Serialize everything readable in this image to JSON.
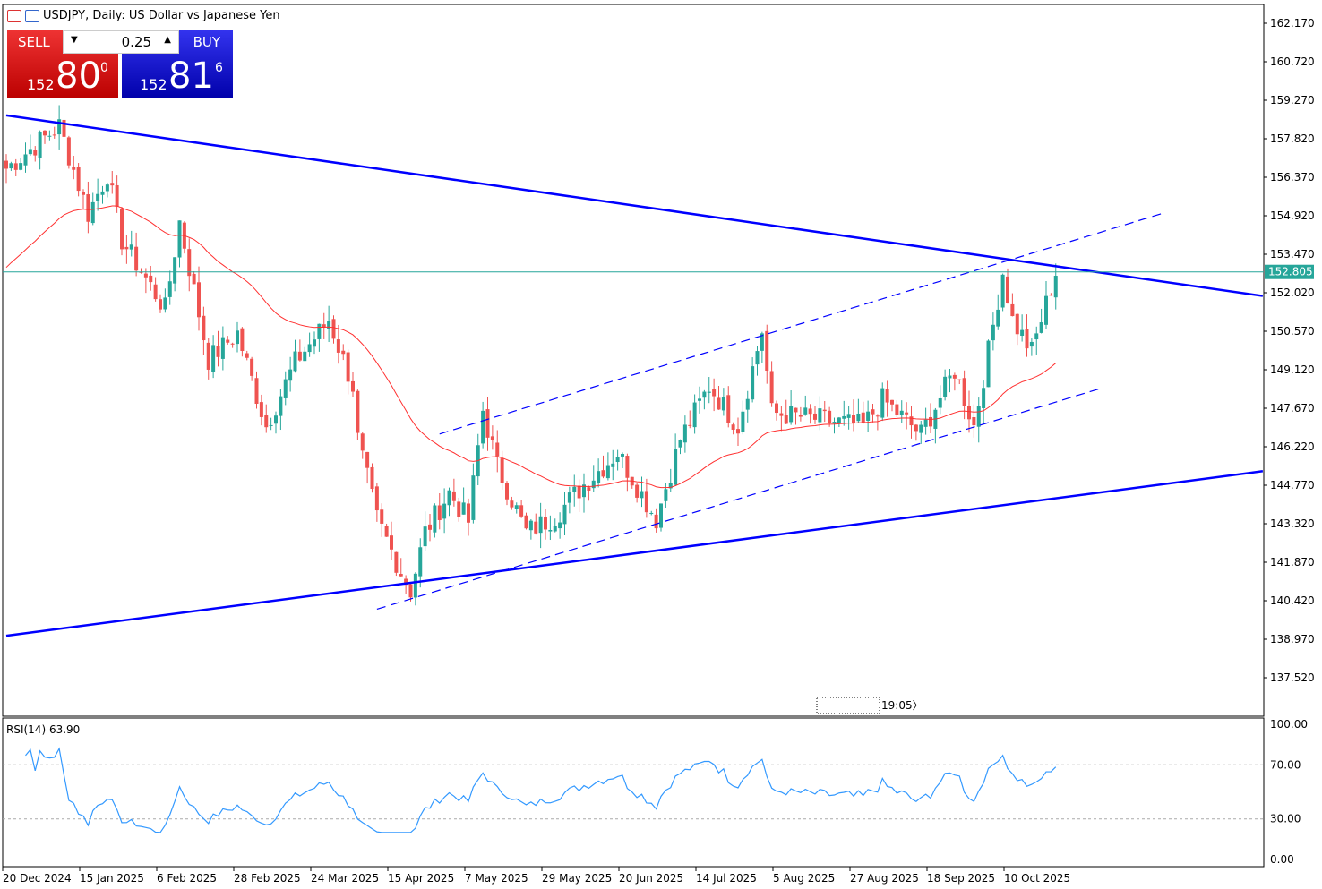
{
  "header": {
    "title": "USDJPY, Daily:  US Dollar vs Japanese Yen"
  },
  "trade_panel": {
    "sell_label": "SELL",
    "buy_label": "BUY",
    "volume": "0.25",
    "sell_prefix": "152",
    "sell_big": "80",
    "sell_sup": "0",
    "buy_prefix": "152",
    "buy_big": "81",
    "buy_sup": "6"
  },
  "time_marker": "19:05",
  "chart_data": [
    {
      "type": "candlestick",
      "title": "USDJPY, Daily",
      "bars": 219,
      "close_keypoints": [
        [
          0,
          156.7
        ],
        [
          11,
          158.3
        ],
        [
          17,
          155.0
        ],
        [
          21,
          156.5
        ],
        [
          24,
          154.0
        ],
        [
          33,
          151.4
        ],
        [
          36,
          154.7
        ],
        [
          42,
          149.5
        ],
        [
          48,
          150.5
        ],
        [
          54,
          147.0
        ],
        [
          60,
          149.4
        ],
        [
          67,
          151.0
        ],
        [
          72,
          148.5
        ],
        [
          73,
          146.5
        ],
        [
          77,
          143.5
        ],
        [
          82,
          141.5
        ],
        [
          84,
          140.8
        ],
        [
          87,
          143.0
        ],
        [
          92,
          144.5
        ],
        [
          96,
          143.4
        ],
        [
          99,
          147.6
        ],
        [
          102,
          145.5
        ],
        [
          108,
          143.0
        ],
        [
          114,
          143.6
        ],
        [
          120,
          144.8
        ],
        [
          127,
          146.0
        ],
        [
          135,
          143.5
        ],
        [
          140,
          146.5
        ],
        [
          146,
          148.5
        ],
        [
          152,
          147.0
        ],
        [
          157,
          150.6
        ],
        [
          159,
          147.5
        ],
        [
          167,
          147.3
        ],
        [
          178,
          147.0
        ],
        [
          182,
          148.0
        ],
        [
          190,
          146.7
        ],
        [
          197,
          149.1
        ],
        [
          201,
          147.0
        ],
        [
          204,
          149.8
        ],
        [
          207,
          152.8
        ],
        [
          209,
          151.0
        ],
        [
          213,
          149.8
        ],
        [
          218,
          152.8
        ]
      ],
      "ylim": [
        136.8,
        162.6
      ],
      "y_ticks": [
        "162.170",
        "160.720",
        "159.270",
        "157.820",
        "156.370",
        "154.920",
        "153.470",
        "152.020",
        "150.570",
        "149.120",
        "147.670",
        "146.220",
        "144.770",
        "143.320",
        "141.870",
        "140.420",
        "138.970",
        "137.520"
      ],
      "current_price": "152.805",
      "x_ticks": [
        {
          "i": 0,
          "label": "20 Dec 2024"
        },
        {
          "i": 16,
          "label": "15 Jan 2025"
        },
        {
          "i": 32,
          "label": "6 Feb 2025"
        },
        {
          "i": 48,
          "label": "28 Feb 2025"
        },
        {
          "i": 64,
          "label": "24 Mar 2025"
        },
        {
          "i": 80,
          "label": "15 Apr 2025"
        },
        {
          "i": 96,
          "label": "7 May 2025"
        },
        {
          "i": 112,
          "label": "29 May 2025"
        },
        {
          "i": 128,
          "label": "20 Jun 2025"
        },
        {
          "i": 144,
          "label": "14 Jul 2025"
        },
        {
          "i": 160,
          "label": "5 Aug 2025"
        },
        {
          "i": 176,
          "label": "27 Aug 2025"
        },
        {
          "i": 192,
          "label": "18 Sep 2025"
        },
        {
          "i": 208,
          "label": "10 Oct 2025"
        }
      ],
      "trendlines": [
        {
          "name": "upper-trendline",
          "p1": [
            0,
            158.7
          ],
          "p2": [
            261,
            151.9
          ],
          "style": "solid"
        },
        {
          "name": "lower-trendline",
          "p1": [
            0,
            139.1
          ],
          "p2": [
            261,
            145.3
          ],
          "style": "solid"
        },
        {
          "name": "channel-upper",
          "p1": [
            90,
            146.7
          ],
          "p2": [
            240,
            155.0
          ],
          "style": "dashed"
        },
        {
          "name": "channel-lower",
          "p1": [
            77,
            140.1
          ],
          "p2": [
            227,
            148.4
          ],
          "style": "dashed"
        }
      ],
      "colors": {
        "up": "#26a69a",
        "down": "#ef5350",
        "ma": "#ff3030",
        "trend": "#0000ff",
        "price_line": "#26a69a"
      }
    },
    {
      "type": "line",
      "title": "RSI(14) 63.90",
      "ylim": [
        0,
        100
      ],
      "levels": [
        70,
        30
      ],
      "y_ticks": [
        "100.00",
        "70.00",
        "30.00",
        "0.00"
      ],
      "color": "#3399ff"
    }
  ]
}
